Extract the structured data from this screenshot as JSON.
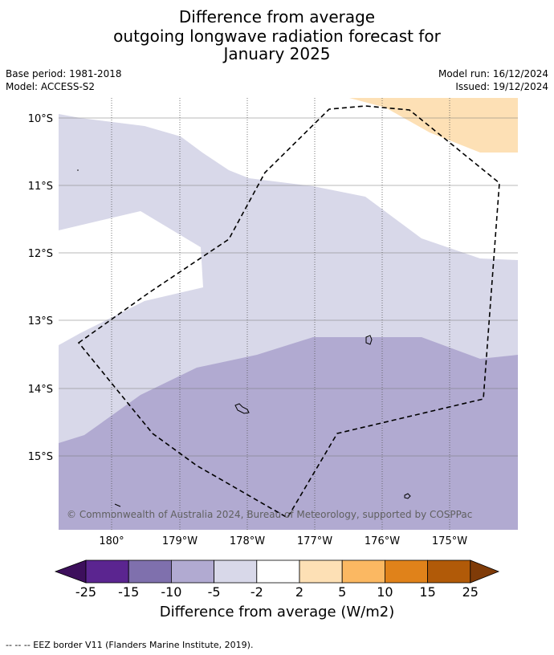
{
  "header": {
    "title_line1": "Difference from average",
    "title_line2": "outgoing longwave radiation forecast for",
    "title_line3": "January 2025",
    "base_period": "Base period: 1981-2018",
    "model": "Model: ACCESS-S2",
    "model_run": "Model run: 16/12/2024",
    "issued": "Issued: 19/12/2024"
  },
  "map": {
    "lat_labels": [
      "10°S",
      "11°S",
      "12°S",
      "13°S",
      "14°S",
      "15°S"
    ],
    "lon_labels": [
      "180°",
      "179°W",
      "178°W",
      "177°W",
      "176°W",
      "175°W"
    ],
    "copyright": "© Commonwealth of Australia 2024, Bureau of Meteorology, supported by COSPPac"
  },
  "colorbar": {
    "ticks": [
      "-25",
      "-15",
      "-10",
      "-5",
      "-2",
      "2",
      "5",
      "10",
      "15",
      "25"
    ],
    "colors": [
      "#3d0f5c",
      "#5b2590",
      "#7f70ad",
      "#b1aad1",
      "#d8d8e9",
      "#ffffff",
      "#fde0b5",
      "#fbb862",
      "#e0821a",
      "#b15a08",
      "#7f3b08"
    ],
    "title": "Difference from average (W/m2)"
  },
  "footer": {
    "legend_note": "--  --  -- EEZ border V11 (Flanders Marine Institute, 2019)."
  }
}
